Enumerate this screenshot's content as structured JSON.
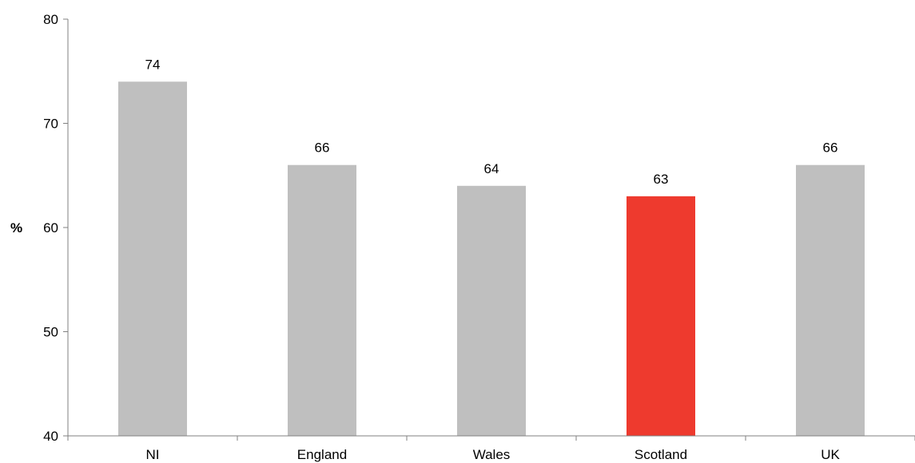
{
  "chart_data": {
    "type": "bar",
    "categories": [
      "NI",
      "England",
      "Wales",
      "Scotland",
      "UK"
    ],
    "values": [
      74,
      66,
      64,
      63,
      66
    ],
    "data_labels": [
      "74",
      "66",
      "64",
      "63",
      "66"
    ],
    "bar_colors": [
      "#bfbfbf",
      "#bfbfbf",
      "#bfbfbf",
      "#ee3a2e",
      "#bfbfbf"
    ],
    "title": "",
    "xlabel": "",
    "ylabel": "%",
    "ylim": [
      40,
      80
    ],
    "yticks": [
      40,
      50,
      60,
      70,
      80
    ],
    "ytick_labels": [
      "40",
      "50",
      "60",
      "70",
      "80"
    ],
    "grid": false,
    "axis_color": "#808080"
  }
}
